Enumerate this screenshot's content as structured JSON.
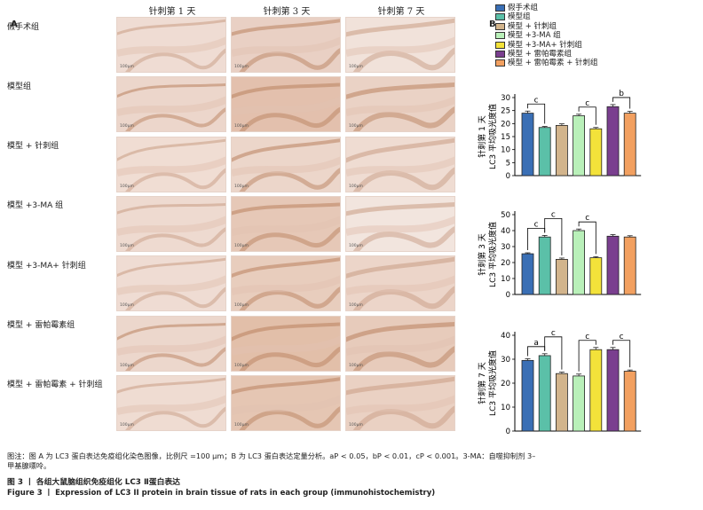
{
  "panel_a": {
    "letter": "A",
    "col_headers": [
      "针刺第 1 天",
      "针刺第 3 天",
      "针刺第 7 天"
    ],
    "row_labels": [
      "假手术组",
      "模型组",
      "模型 + 针刺组",
      "模型 +3-MA 组",
      "模型 +3-MA+ 针刺组",
      "模型 + 雷帕霉素组",
      "模型 + 雷帕霉素 + 针刺组"
    ],
    "scale_bar_label": "100μm"
  },
  "panel_b": {
    "letter": "B",
    "legend": [
      {
        "label": "假手术组",
        "color": "#3a6fb5"
      },
      {
        "label": "模型组",
        "color": "#5bc0a8"
      },
      {
        "label": "模型 + 针刺组",
        "color": "#d2b48c"
      },
      {
        "label": "模型 +3-MA 组",
        "color": "#b9f0b9"
      },
      {
        "label": "模型 +3-MA+ 针刺组",
        "color": "#f3e23a"
      },
      {
        "label": "模型 + 雷帕霉素组",
        "color": "#7a3f8f"
      },
      {
        "label": "模型 + 雷帕霉素 + 针刺组",
        "color": "#f2a060"
      }
    ]
  },
  "chart_data": [
    {
      "type": "bar",
      "ylabel": "针刺第 1 天\nLC3 平均吸光度值",
      "ylabel_line1": "针刺第 1 天",
      "ylabel_line2": "LC3 平均吸光度值",
      "ylim": [
        0,
        30
      ],
      "yticks": [
        0,
        5,
        10,
        15,
        20,
        25,
        30
      ],
      "values": [
        24,
        18.5,
        19.3,
        23,
        18,
        26.5,
        24
      ],
      "errors": [
        0.8,
        0.4,
        0.6,
        0.6,
        0.5,
        0.8,
        0.7
      ],
      "sig": [
        {
          "from": 0,
          "to": 1,
          "label": "c"
        },
        {
          "from": 3,
          "to": 4,
          "label": "c"
        },
        {
          "from": 5,
          "to": 6,
          "label": "b"
        }
      ]
    },
    {
      "type": "bar",
      "ylabel_line1": "针刺第 3 天",
      "ylabel_line2": "LC3 平均吸光度值",
      "ylim": [
        0,
        50
      ],
      "yticks": [
        0,
        10,
        20,
        30,
        40,
        50
      ],
      "values": [
        25.5,
        36,
        22,
        40,
        23,
        36.5,
        36
      ],
      "errors": [
        0.6,
        1.0,
        0.8,
        1.0,
        0.7,
        1.0,
        0.8
      ],
      "sig": [
        {
          "from": 0,
          "to": 1,
          "label": "c"
        },
        {
          "from": 1,
          "to": 2,
          "label": "c"
        },
        {
          "from": 3,
          "to": 4,
          "label": "c"
        }
      ]
    },
    {
      "type": "bar",
      "ylabel_line1": "针刺第 7 天",
      "ylabel_line2": "LC3 平均吸光度值",
      "ylim": [
        0,
        40
      ],
      "yticks": [
        0,
        10,
        20,
        30,
        40
      ],
      "values": [
        29.5,
        31.5,
        24,
        23,
        34,
        34,
        25
      ],
      "errors": [
        0.7,
        0.8,
        0.6,
        0.8,
        0.9,
        0.9,
        0.5
      ],
      "sig": [
        {
          "from": 0,
          "to": 1,
          "label": "a"
        },
        {
          "from": 1,
          "to": 2,
          "label": "c"
        },
        {
          "from": 3,
          "to": 4,
          "label": "c"
        },
        {
          "from": 5,
          "to": 6,
          "label": "c"
        }
      ]
    }
  ],
  "caption": {
    "note": "图注：图 A 为 LC3 蛋白表达免疫组化染色图像，比例尺 =100 μm；B 为 LC3 蛋白表达定量分析。aP < 0.05，bP < 0.01，cP < 0.001。3-MA：自噬抑制剂 3–",
    "note2": "甲基腺嘌呤。",
    "title_cn": "图 3 丨 各组大鼠脑组织免疫组化 LC3 Ⅱ蛋白表达",
    "title_en": "Figure 3 丨 Expression of LC3 II protein in brain tissue of rats in each group (immunohistochemistry)"
  }
}
